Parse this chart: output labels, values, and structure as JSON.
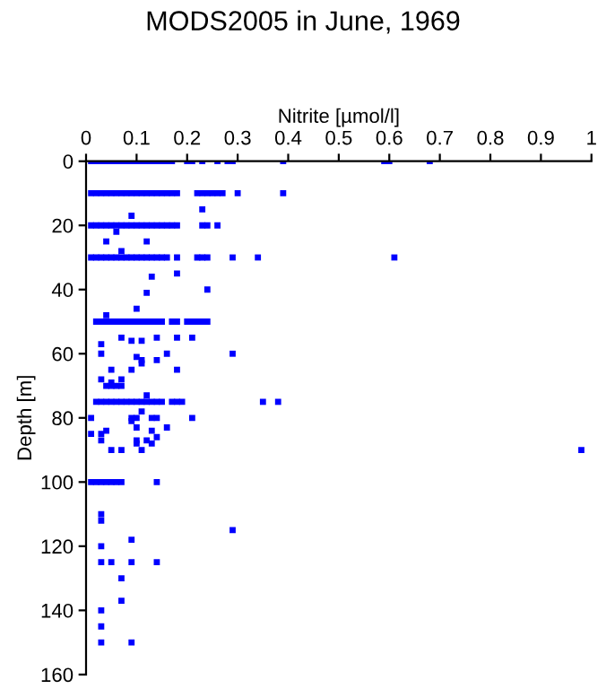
{
  "chart_data": {
    "type": "scatter",
    "title": "MODS2005 in June, 1969",
    "xlabel": "Nitrite [µmol/l]",
    "ylabel": "Depth [m]",
    "xlim": [
      0,
      1
    ],
    "xticks": [
      0,
      0.1,
      0.2,
      0.3,
      0.4,
      0.5,
      0.6,
      0.7,
      0.8,
      0.9,
      1
    ],
    "ylim": [
      160,
      0
    ],
    "yticks": [
      0,
      20,
      40,
      60,
      80,
      100,
      120,
      140,
      160
    ],
    "marker": "square",
    "grid": false,
    "legend": false,
    "series": [
      {
        "color": "#0000ff",
        "x": [
          0.01,
          0.02,
          0.03,
          0.04,
          0.05,
          0.06,
          0.07,
          0.08,
          0.09,
          0.1,
          0.11,
          0.12,
          0.13,
          0.14,
          0.15,
          0.16,
          0.17,
          0.2,
          0.21,
          0.23,
          0.26,
          0.28,
          0.29,
          0.39,
          0.59,
          0.6,
          0.68
        ],
        "values": [
          0,
          0,
          0,
          0,
          0,
          0,
          0,
          0,
          0,
          0,
          0,
          0,
          0,
          0,
          0,
          0,
          0,
          0,
          0,
          0,
          0,
          0,
          0,
          0,
          0,
          0,
          0
        ]
      },
      {
        "color": "#0000ff",
        "x": [
          0.01,
          0.02,
          0.03,
          0.04,
          0.05,
          0.06,
          0.07,
          0.08,
          0.09,
          0.1,
          0.11,
          0.12,
          0.13,
          0.14,
          0.15,
          0.16,
          0.17,
          0.18,
          0.22,
          0.23,
          0.24,
          0.25,
          0.26,
          0.27,
          0.3,
          0.39,
          0.23,
          0.09
        ],
        "values": [
          10,
          10,
          10,
          10,
          10,
          10,
          10,
          10,
          10,
          10,
          10,
          10,
          10,
          10,
          10,
          10,
          10,
          10,
          10,
          10,
          10,
          10,
          10,
          10,
          10,
          10,
          15,
          17
        ]
      },
      {
        "color": "#0000ff",
        "x": [
          0.01,
          0.02,
          0.03,
          0.04,
          0.05,
          0.06,
          0.07,
          0.08,
          0.09,
          0.1,
          0.11,
          0.12,
          0.13,
          0.14,
          0.15,
          0.16,
          0.17,
          0.18,
          0.23,
          0.24,
          0.26,
          0.06,
          0.04,
          0.12,
          0.07
        ],
        "values": [
          20,
          20,
          20,
          20,
          20,
          20,
          20,
          20,
          20,
          20,
          20,
          20,
          20,
          20,
          20,
          20,
          20,
          20,
          20,
          20,
          20,
          22,
          25,
          25,
          28
        ]
      },
      {
        "color": "#0000ff",
        "x": [
          0.01,
          0.02,
          0.03,
          0.04,
          0.05,
          0.06,
          0.07,
          0.08,
          0.09,
          0.1,
          0.11,
          0.12,
          0.13,
          0.14,
          0.15,
          0.16,
          0.18,
          0.22,
          0.23,
          0.24,
          0.29,
          0.34,
          0.61,
          0.18,
          0.13,
          0.24,
          0.12,
          0.1,
          0.04
        ],
        "values": [
          30,
          30,
          30,
          30,
          30,
          30,
          30,
          30,
          30,
          30,
          30,
          30,
          30,
          30,
          30,
          30,
          30,
          30,
          30,
          30,
          30,
          30,
          30,
          35,
          36,
          40,
          41,
          46,
          48
        ]
      },
      {
        "color": "#0000ff",
        "x": [
          0.02,
          0.03,
          0.04,
          0.05,
          0.06,
          0.07,
          0.08,
          0.09,
          0.1,
          0.11,
          0.12,
          0.13,
          0.14,
          0.15,
          0.17,
          0.18,
          0.2,
          0.21,
          0.22,
          0.23,
          0.24
        ],
        "values": [
          50,
          50,
          50,
          50,
          50,
          50,
          50,
          50,
          50,
          50,
          50,
          50,
          50,
          50,
          50,
          50,
          50,
          50,
          50,
          50,
          50
        ]
      },
      {
        "color": "#0000ff",
        "x": [
          0.07,
          0.14,
          0.18,
          0.21,
          0.09,
          0.11,
          0.03,
          0.03,
          0.16,
          0.29,
          0.1,
          0.11,
          0.14,
          0.11,
          0.05,
          0.09,
          0.18,
          0.03,
          0.07,
          0.05,
          0.04,
          0.05,
          0.06,
          0.07,
          0.12
        ],
        "values": [
          55,
          55,
          55,
          55,
          56,
          56,
          57,
          60,
          60,
          60,
          61,
          62,
          62,
          63,
          65,
          65,
          65,
          68,
          68,
          69,
          70,
          70,
          70,
          70,
          73
        ]
      },
      {
        "color": "#0000ff",
        "x": [
          0.02,
          0.03,
          0.04,
          0.05,
          0.06,
          0.07,
          0.08,
          0.09,
          0.1,
          0.11,
          0.12,
          0.13,
          0.14,
          0.15,
          0.17,
          0.18,
          0.19,
          0.35,
          0.38
        ],
        "values": [
          75,
          75,
          75,
          75,
          75,
          75,
          75,
          75,
          75,
          75,
          75,
          75,
          75,
          75,
          75,
          75,
          75,
          75,
          75
        ]
      },
      {
        "color": "#0000ff",
        "x": [
          0.11,
          0.01,
          0.09,
          0.1,
          0.13,
          0.14,
          0.21,
          0.09,
          0.1,
          0.16,
          0.04,
          0.13,
          0.01,
          0.03,
          0.14,
          0.03,
          0.1,
          0.12,
          0.1,
          0.13,
          0.05,
          0.07,
          0.11,
          0.98
        ],
        "values": [
          78,
          80,
          80,
          80,
          80,
          80,
          80,
          81,
          83,
          83,
          84,
          84,
          85,
          85,
          86,
          87,
          87,
          87,
          88,
          88,
          90,
          90,
          90,
          90
        ]
      },
      {
        "color": "#0000ff",
        "x": [
          0.01,
          0.02,
          0.03,
          0.04,
          0.05,
          0.06,
          0.07,
          0.14,
          0.03,
          0.03,
          0.29,
          0.09,
          0.03,
          0.03,
          0.05,
          0.09,
          0.14,
          0.07,
          0.07,
          0.03,
          0.03,
          0.03,
          0.09
        ],
        "values": [
          100,
          100,
          100,
          100,
          100,
          100,
          100,
          100,
          110,
          112,
          115,
          118,
          120,
          125,
          125,
          125,
          125,
          130,
          137,
          140,
          145,
          150,
          150
        ]
      }
    ]
  }
}
